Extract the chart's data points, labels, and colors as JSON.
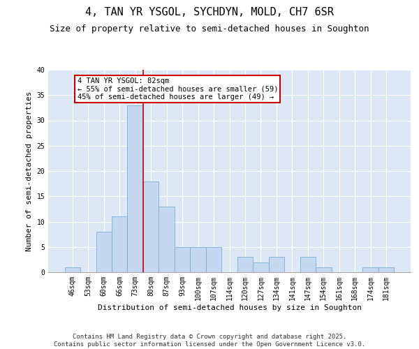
{
  "title": "4, TAN YR YSGOL, SYCHDYN, MOLD, CH7 6SR",
  "subtitle": "Size of property relative to semi-detached houses in Soughton",
  "xlabel": "Distribution of semi-detached houses by size in Soughton",
  "ylabel": "Number of semi-detached properties",
  "categories": [
    "46sqm",
    "53sqm",
    "60sqm",
    "66sqm",
    "73sqm",
    "80sqm",
    "87sqm",
    "93sqm",
    "100sqm",
    "107sqm",
    "114sqm",
    "120sqm",
    "127sqm",
    "134sqm",
    "141sqm",
    "147sqm",
    "154sqm",
    "161sqm",
    "168sqm",
    "174sqm",
    "181sqm"
  ],
  "values": [
    1,
    0,
    8,
    11,
    33,
    18,
    13,
    5,
    5,
    5,
    0,
    3,
    2,
    3,
    0,
    3,
    1,
    0,
    0,
    1,
    1
  ],
  "bar_color": "#c5d8f0",
  "bar_edge_color": "#7aaed4",
  "vline_x": 4.5,
  "vline_color": "#cc0000",
  "annotation_text": "4 TAN YR YSGOL: 82sqm\n← 55% of semi-detached houses are smaller (59)\n45% of semi-detached houses are larger (49) →",
  "annotation_box_color": "#cc0000",
  "ylim": [
    0,
    40
  ],
  "yticks": [
    0,
    5,
    10,
    15,
    20,
    25,
    30,
    35,
    40
  ],
  "background_color": "#dce8f5",
  "footer_line1": "Contains HM Land Registry data © Crown copyright and database right 2025.",
  "footer_line2": "Contains public sector information licensed under the Open Government Licence v3.0.",
  "title_fontsize": 11,
  "subtitle_fontsize": 9,
  "axis_label_fontsize": 8,
  "tick_fontsize": 7,
  "annotation_fontsize": 7.5,
  "footer_fontsize": 6.5
}
